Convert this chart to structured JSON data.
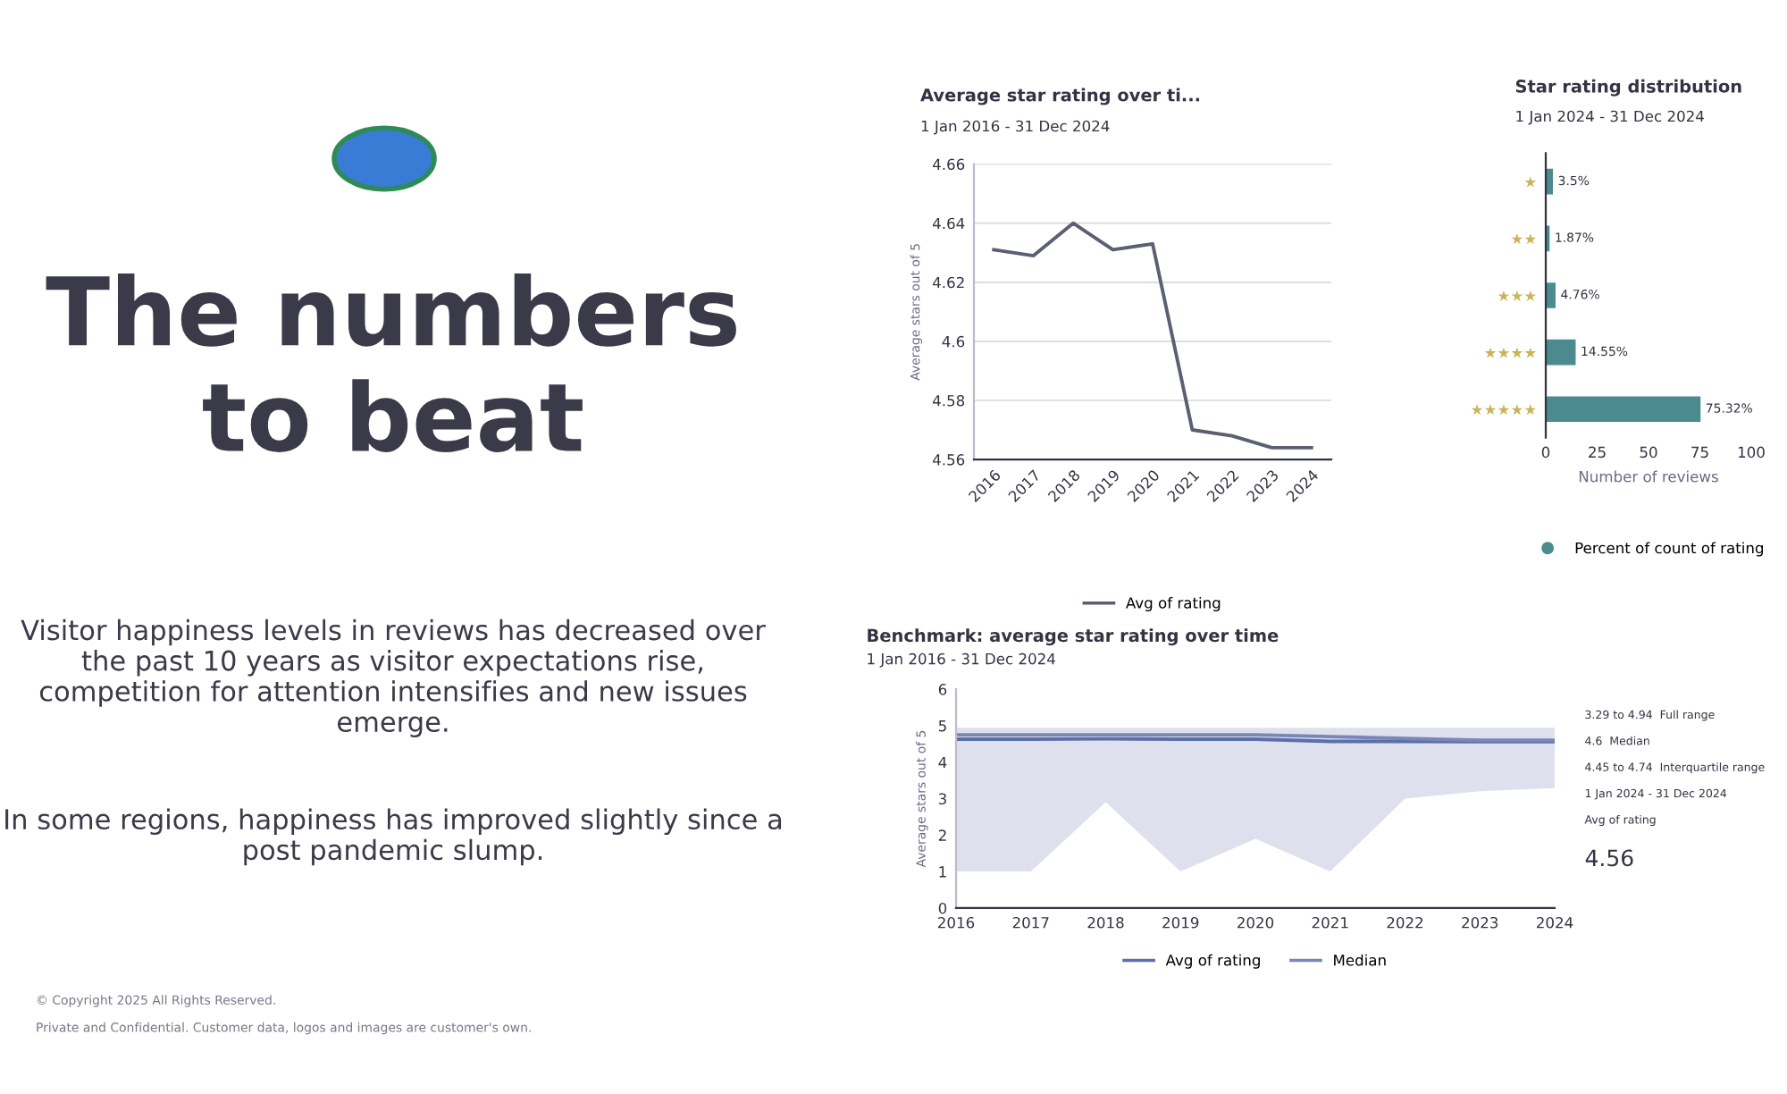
{
  "chart_data": [
    {
      "type": "other",
      "title": "The numbers to beat",
      "annotations": [
        "Visitor happiness levels in reviews has decreased over the past 10 years as visitor expectations rise, competition for attention intensifies and new issues emerge.",
        "In some regions, happiness has improved slightly since a post pandemic slump.",
        "© Copyright 2025 All Rights Reserved.",
        "Private and Confidential. Customer data, logos and images are customer's own."
      ]
    },
    {
      "type": "line",
      "title": "Average star rating over ti...",
      "subtitle": "1 Jan 2016 - 31 Dec 2024",
      "ylabel": "Average stars out of 5",
      "x": [
        2016,
        2017,
        2018,
        2019,
        2020,
        2021,
        2022,
        2023,
        2024
      ],
      "series": [
        {
          "name": "Avg of rating",
          "color": "#5a5f73",
          "values": [
            4.631,
            4.629,
            4.64,
            4.631,
            4.633,
            4.57,
            4.568,
            4.564,
            4.564
          ]
        }
      ],
      "xlim": [
        2015.5,
        2024.5
      ],
      "xticks": [
        2016,
        2017,
        2018,
        2019,
        2020,
        2021,
        2022,
        2023,
        2024
      ],
      "ylim": [
        4.56,
        4.66
      ],
      "yticks": [
        4.56,
        4.58,
        4.6,
        4.62,
        4.64,
        4.66
      ],
      "grid": "y",
      "legend": "bottom"
    },
    {
      "type": "bar",
      "orientation": "horizontal",
      "title": "Star rating distribution",
      "subtitle": "1 Jan 2024 - 31 Dec 2024",
      "xlabel": "Number of reviews",
      "categories": [
        "★",
        "★★",
        "★★★",
        "★★★★",
        "★★★★★"
      ],
      "series": [
        {
          "name": "Percent of count of rating",
          "color": "#4b8a8e",
          "values": [
            3.5,
            1.87,
            4.76,
            14.55,
            75.32
          ],
          "value_labels": [
            "3.5%",
            "1.87%",
            "4.76%",
            "14.55%",
            "75.32%"
          ]
        }
      ],
      "xlim": [
        0,
        100
      ],
      "xticks": [
        0,
        25,
        50,
        75,
        100
      ],
      "legend": "bottom"
    },
    {
      "type": "line",
      "title": "Benchmark: average star rating over time",
      "subtitle": "1 Jan 2016 - 31 Dec 2024",
      "ylabel": "Average stars out of 5",
      "x": [
        2016,
        2017,
        2018,
        2019,
        2020,
        2021,
        2022,
        2023,
        2024
      ],
      "series": [
        {
          "name": "Avg of rating",
          "color": "#5b6fa8",
          "values": [
            4.63,
            4.63,
            4.64,
            4.63,
            4.63,
            4.57,
            4.57,
            4.56,
            4.56
          ]
        },
        {
          "name": "Median",
          "color": "#7a86b8",
          "values": [
            4.75,
            4.75,
            4.75,
            4.75,
            4.75,
            4.7,
            4.65,
            4.6,
            4.6
          ],
          "lower": [
            1,
            1,
            2.9,
            1,
            1.9,
            1,
            3,
            3.2,
            3.29
          ],
          "upper": [
            4.94,
            4.94,
            4.94,
            4.94,
            4.94,
            4.94,
            4.94,
            4.94,
            4.94
          ]
        }
      ],
      "xlim": [
        2016,
        2024
      ],
      "xticks": [
        2016,
        2017,
        2018,
        2019,
        2020,
        2021,
        2022,
        2023,
        2024
      ],
      "ylim": [
        0,
        6
      ],
      "yticks": [
        0,
        1,
        2,
        3,
        4,
        5,
        6
      ],
      "legend": "bottom",
      "annotations": [
        "3.29 to 4.94  Full range",
        "4.6  Median",
        "4.45 to 4.74  Interquartile range",
        "1 Jan 2024 - 31 Dec 2024",
        "Avg of rating",
        "4.56"
      ]
    }
  ]
}
